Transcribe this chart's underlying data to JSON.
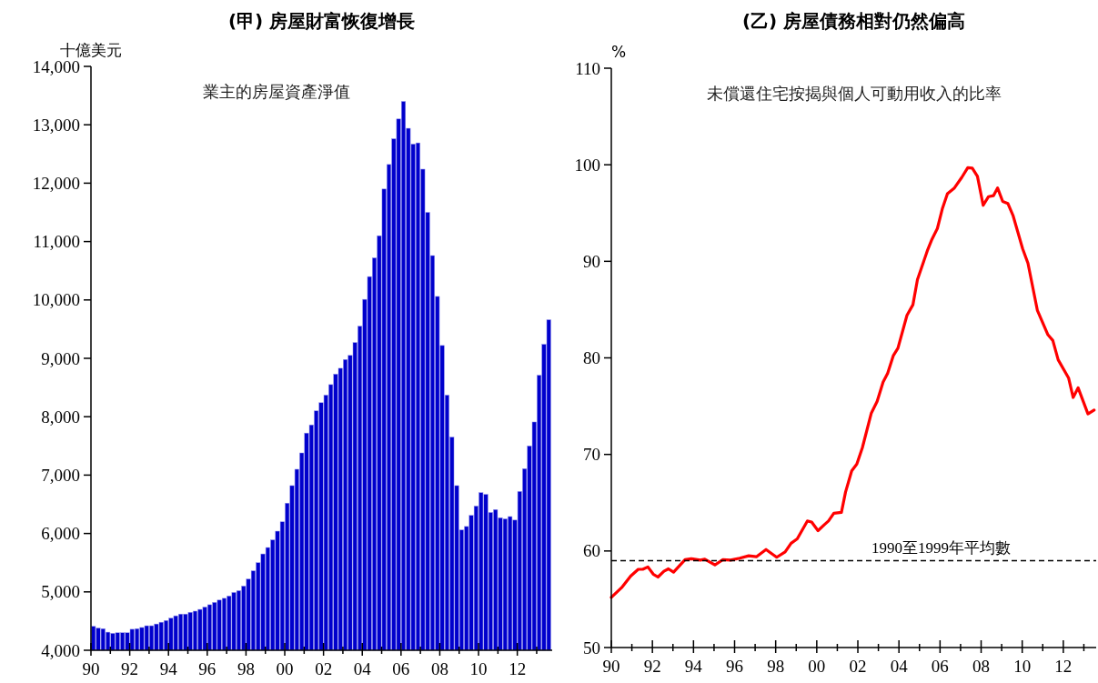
{
  "chart_data": [
    {
      "type": "bar",
      "title": "(甲) 房屋財富恢復增長",
      "ylabel": "十億美元",
      "annotations": [
        "業主的房屋資產淨值"
      ],
      "x": [
        1990.125,
        1990.375,
        1990.625,
        1990.875,
        1991.125,
        1991.375,
        1991.625,
        1991.875,
        1992.125,
        1992.375,
        1992.625,
        1992.875,
        1993.125,
        1993.375,
        1993.625,
        1993.875,
        1994.125,
        1994.375,
        1994.625,
        1994.875,
        1995.125,
        1995.375,
        1995.625,
        1995.875,
        1996.125,
        1996.375,
        1996.625,
        1996.875,
        1997.125,
        1997.375,
        1997.625,
        1997.875,
        1998.125,
        1998.375,
        1998.625,
        1998.875,
        1999.125,
        1999.375,
        1999.625,
        1999.875,
        2000.125,
        2000.375,
        2000.625,
        2000.875,
        2001.125,
        2001.375,
        2001.625,
        2001.875,
        2002.125,
        2002.375,
        2002.625,
        2002.875,
        2003.125,
        2003.375,
        2003.625,
        2003.875,
        2004.125,
        2004.375,
        2004.625,
        2004.875,
        2005.125,
        2005.375,
        2005.625,
        2005.875,
        2006.125,
        2006.375,
        2006.625,
        2006.875,
        2007.125,
        2007.375,
        2007.625,
        2007.875,
        2008.125,
        2008.375,
        2008.625,
        2008.875,
        2009.125,
        2009.375,
        2009.625,
        2009.875,
        2010.125,
        2010.375,
        2010.625,
        2010.875,
        2011.125,
        2011.375,
        2011.625,
        2011.875,
        2012.125,
        2012.375,
        2012.625,
        2012.875,
        2013.125,
        2013.375,
        2013.625
      ],
      "series": [
        {
          "color": "#0000cc",
          "values": [
            4410,
            4380,
            4370,
            4310,
            4290,
            4300,
            4300,
            4300,
            4360,
            4370,
            4390,
            4420,
            4420,
            4450,
            4480,
            4510,
            4550,
            4590,
            4620,
            4620,
            4650,
            4670,
            4700,
            4740,
            4780,
            4820,
            4860,
            4890,
            4930,
            4990,
            5020,
            5100,
            5220,
            5360,
            5500,
            5650,
            5760,
            5890,
            6040,
            6200,
            6520,
            6820,
            7100,
            7380,
            7720,
            7860,
            8100,
            8240,
            8370,
            8550,
            8730,
            8830,
            8980,
            9050,
            9270,
            9550,
            10010,
            10400,
            10720,
            11100,
            11900,
            12320,
            12760,
            13100,
            13400,
            12940,
            12670,
            12690,
            12240,
            11500,
            10760,
            10060,
            9220,
            8370,
            7650,
            6820,
            6060,
            6120,
            6310,
            6470,
            6700,
            6670,
            6360,
            6410,
            6270,
            6250,
            6290,
            6230,
            6720,
            7110,
            7500,
            7910,
            8710,
            9240,
            9660
          ]
        }
      ],
      "xlim": [
        1990,
        2013.8
      ],
      "xticks": [
        {
          "value": 1990,
          "label": "90"
        },
        {
          "value": 1991,
          "label": null
        },
        {
          "value": 1992,
          "label": "92"
        },
        {
          "value": 1993,
          "label": null
        },
        {
          "value": 1994,
          "label": "94"
        },
        {
          "value": 1995,
          "label": null
        },
        {
          "value": 1996,
          "label": "96"
        },
        {
          "value": 1997,
          "label": null
        },
        {
          "value": 1998,
          "label": "98"
        },
        {
          "value": 1999,
          "label": null
        },
        {
          "value": 2000,
          "label": "00"
        },
        {
          "value": 2001,
          "label": null
        },
        {
          "value": 2002,
          "label": "02"
        },
        {
          "value": 2003,
          "label": null
        },
        {
          "value": 2004,
          "label": "04"
        },
        {
          "value": 2005,
          "label": null
        },
        {
          "value": 2006,
          "label": "06"
        },
        {
          "value": 2007,
          "label": null
        },
        {
          "value": 2008,
          "label": "08"
        },
        {
          "value": 2009,
          "label": null
        },
        {
          "value": 2010,
          "label": "10"
        },
        {
          "value": 2011,
          "label": null
        },
        {
          "value": 2012,
          "label": "12"
        },
        {
          "value": 2013,
          "label": null
        }
      ],
      "ylim": [
        4000,
        14000
      ],
      "yticks": [
        {
          "value": 4000,
          "label": "4,000"
        },
        {
          "value": 5000,
          "label": "5,000"
        },
        {
          "value": 6000,
          "label": "6,000"
        },
        {
          "value": 7000,
          "label": "7,000"
        },
        {
          "value": 8000,
          "label": "8,000"
        },
        {
          "value": 9000,
          "label": "9,000"
        },
        {
          "value": 10000,
          "label": "10,000"
        },
        {
          "value": 11000,
          "label": "11,000"
        },
        {
          "value": 12000,
          "label": "12,000"
        },
        {
          "value": 13000,
          "label": "13,000"
        },
        {
          "value": 14000,
          "label": "14,000"
        }
      ]
    },
    {
      "type": "line",
      "title": "(乙) 房屋債務相對仍然偏高",
      "ylabel": "%",
      "annotations": [
        "未償還住宅按揭與個人可動用收入的比率"
      ],
      "series": [
        {
          "color": "#ff0000",
          "x": [
            1990.0,
            1990.5,
            1990.94,
            1991.31,
            1991.53,
            1991.78,
            1992.04,
            1992.27,
            1992.56,
            1992.78,
            1993.03,
            1993.59,
            1993.89,
            1994.33,
            1994.55,
            1995.04,
            1995.43,
            1995.8,
            1996.25,
            1996.69,
            1997.06,
            1997.53,
            1998.05,
            1998.46,
            1998.75,
            1999.05,
            1999.54,
            1999.75,
            2000.06,
            2000.36,
            2000.57,
            2000.83,
            2001.2,
            2001.4,
            2001.7,
            2001.95,
            2002.22,
            2002.65,
            2002.94,
            2003.23,
            2003.45,
            2003.73,
            2003.95,
            2004.39,
            2004.68,
            2004.9,
            2005.4,
            2005.61,
            2005.87,
            2006.12,
            2006.36,
            2006.7,
            2007.06,
            2007.35,
            2007.57,
            2007.82,
            2008.1,
            2008.36,
            2008.6,
            2008.8,
            2009.05,
            2009.3,
            2009.56,
            2010.02,
            2010.28,
            2010.74,
            2011.25,
            2011.49,
            2011.75,
            2012.26,
            2012.48,
            2012.72,
            2013.2,
            2013.5
          ],
          "values": [
            55.2,
            56.2,
            57.4,
            58.1,
            58.1,
            58.35,
            57.6,
            57.3,
            57.9,
            58.15,
            57.8,
            59.1,
            59.2,
            59.05,
            59.15,
            58.55,
            59.1,
            59.05,
            59.25,
            59.5,
            59.4,
            60.15,
            59.35,
            59.9,
            60.8,
            61.25,
            63.1,
            63.0,
            62.1,
            62.7,
            63.1,
            63.9,
            64.0,
            66.1,
            68.3,
            69.0,
            70.7,
            74.25,
            75.5,
            77.5,
            78.4,
            80.25,
            81.0,
            84.4,
            85.5,
            88.1,
            91.2,
            92.3,
            93.4,
            95.5,
            97.0,
            97.6,
            98.7,
            99.7,
            99.65,
            98.8,
            95.8,
            96.7,
            96.8,
            97.6,
            96.2,
            96.0,
            94.7,
            91.3,
            89.8,
            84.9,
            82.4,
            81.8,
            79.8,
            77.9,
            75.9,
            76.9,
            74.2,
            74.6
          ]
        }
      ],
      "xlim": [
        1990,
        2013.6
      ],
      "xticks": [
        {
          "value": 1990,
          "label": "90"
        },
        {
          "value": 1991,
          "label": null
        },
        {
          "value": 1992,
          "label": "92"
        },
        {
          "value": 1993,
          "label": null
        },
        {
          "value": 1994,
          "label": "94"
        },
        {
          "value": 1995,
          "label": null
        },
        {
          "value": 1996,
          "label": "96"
        },
        {
          "value": 1997,
          "label": null
        },
        {
          "value": 1998,
          "label": "98"
        },
        {
          "value": 1999,
          "label": null
        },
        {
          "value": 2000,
          "label": "00"
        },
        {
          "value": 2001,
          "label": null
        },
        {
          "value": 2002,
          "label": "02"
        },
        {
          "value": 2003,
          "label": null
        },
        {
          "value": 2004,
          "label": "04"
        },
        {
          "value": 2005,
          "label": null
        },
        {
          "value": 2006,
          "label": "06"
        },
        {
          "value": 2007,
          "label": null
        },
        {
          "value": 2008,
          "label": "08"
        },
        {
          "value": 2009,
          "label": null
        },
        {
          "value": 2010,
          "label": "10"
        },
        {
          "value": 2011,
          "label": null
        },
        {
          "value": 2012,
          "label": "12"
        },
        {
          "value": 2013,
          "label": null
        }
      ],
      "ylim": [
        50,
        110
      ],
      "yticks": [
        50,
        60,
        70,
        80,
        90,
        100,
        110
      ],
      "line_style": "solid",
      "ref_lines": [
        {
          "axis": "y",
          "value": 59,
          "label": "1990至1999年平均數",
          "line_style": "dashed",
          "color": "#000000"
        }
      ]
    }
  ]
}
